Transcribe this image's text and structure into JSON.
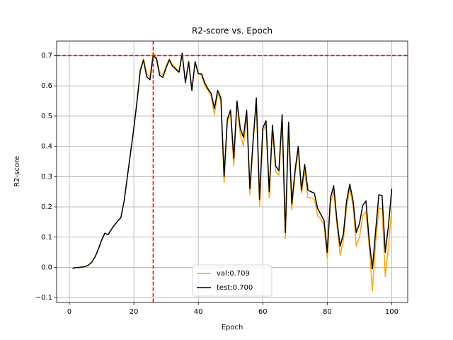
{
  "chart_data": {
    "type": "line",
    "title": "R2-score vs. Epoch",
    "x_label": "Epoch",
    "y_label": "R2-score",
    "x": [
      1,
      2,
      3,
      4,
      5,
      6,
      7,
      8,
      9,
      10,
      11,
      12,
      13,
      14,
      15,
      16,
      17,
      18,
      19,
      20,
      21,
      22,
      23,
      24,
      25,
      26,
      27,
      28,
      29,
      30,
      31,
      32,
      33,
      34,
      35,
      36,
      37,
      38,
      39,
      40,
      41,
      42,
      43,
      44,
      45,
      46,
      47,
      48,
      49,
      50,
      51,
      52,
      53,
      54,
      55,
      56,
      57,
      58,
      59,
      60,
      61,
      62,
      63,
      64,
      65,
      66,
      67,
      68,
      69,
      70,
      71,
      72,
      73,
      74,
      75,
      76,
      77,
      78,
      79,
      80,
      81,
      82,
      83,
      84,
      85,
      86,
      87,
      88,
      89,
      90,
      91,
      92,
      93,
      94,
      95,
      96,
      97,
      98,
      99,
      100
    ],
    "series": [
      {
        "name": "val:0.709",
        "color": "#ffa500",
        "values": [
          -0.003,
          -0.001,
          0.0,
          0.001,
          0.003,
          0.008,
          0.018,
          0.035,
          0.06,
          0.09,
          0.113,
          0.108,
          0.125,
          0.14,
          0.153,
          0.165,
          0.22,
          0.3,
          0.38,
          0.46,
          0.55,
          0.655,
          0.69,
          0.64,
          0.63,
          0.709,
          0.695,
          0.645,
          0.635,
          0.665,
          0.69,
          0.67,
          0.66,
          0.645,
          0.7,
          0.615,
          0.675,
          0.59,
          0.675,
          0.64,
          0.635,
          0.6,
          0.585,
          0.565,
          0.505,
          0.575,
          0.55,
          0.28,
          0.48,
          0.51,
          0.335,
          0.54,
          0.44,
          0.4,
          0.51,
          0.24,
          0.41,
          0.55,
          0.2,
          0.45,
          0.47,
          0.23,
          0.455,
          0.315,
          0.305,
          0.49,
          0.095,
          0.465,
          0.19,
          0.305,
          0.385,
          0.245,
          0.32,
          0.23,
          0.23,
          0.225,
          0.17,
          0.16,
          0.14,
          0.03,
          0.215,
          0.25,
          0.14,
          0.04,
          0.09,
          0.2,
          0.26,
          0.205,
          0.07,
          0.1,
          0.17,
          0.185,
          0.07,
          -0.077,
          0.08,
          0.195,
          0.193,
          -0.03,
          0.07,
          0.195
        ]
      },
      {
        "name": "test:0.700",
        "color": "#000000",
        "values": [
          -0.003,
          -0.001,
          0.0,
          0.001,
          0.003,
          0.008,
          0.018,
          0.035,
          0.06,
          0.09,
          0.113,
          0.108,
          0.125,
          0.14,
          0.153,
          0.165,
          0.22,
          0.3,
          0.38,
          0.46,
          0.55,
          0.65,
          0.685,
          0.63,
          0.62,
          0.7,
          0.69,
          0.635,
          0.628,
          0.66,
          0.685,
          0.665,
          0.655,
          0.645,
          0.708,
          0.61,
          0.68,
          0.585,
          0.68,
          0.64,
          0.64,
          0.61,
          0.59,
          0.575,
          0.525,
          0.585,
          0.56,
          0.3,
          0.49,
          0.52,
          0.36,
          0.55,
          0.46,
          0.43,
          0.52,
          0.26,
          0.42,
          0.56,
          0.225,
          0.46,
          0.485,
          0.25,
          0.47,
          0.335,
          0.32,
          0.505,
          0.115,
          0.48,
          0.21,
          0.32,
          0.4,
          0.255,
          0.34,
          0.255,
          0.25,
          0.245,
          0.195,
          0.175,
          0.155,
          0.05,
          0.23,
          0.27,
          0.155,
          0.07,
          0.11,
          0.22,
          0.275,
          0.22,
          0.115,
          0.145,
          0.205,
          0.22,
          0.09,
          -0.005,
          0.12,
          0.24,
          0.238,
          0.05,
          0.14,
          0.26
        ]
      }
    ],
    "hline": 0.7,
    "vline": 26,
    "reference_color": "#ff0000",
    "xlim": [
      -3.95,
      104.95
    ],
    "xticks": [
      0,
      20,
      40,
      60,
      80,
      100
    ],
    "ylim": [
      -0.116,
      0.748
    ],
    "yticks": [
      {
        "value": -0.1,
        "label": "−0.1"
      },
      {
        "value": 0,
        "label": "0.0"
      },
      0.1,
      0.2,
      0.3,
      0.4,
      0.5,
      0.6,
      0.7
    ],
    "grid": true,
    "legend": "lower center"
  }
}
